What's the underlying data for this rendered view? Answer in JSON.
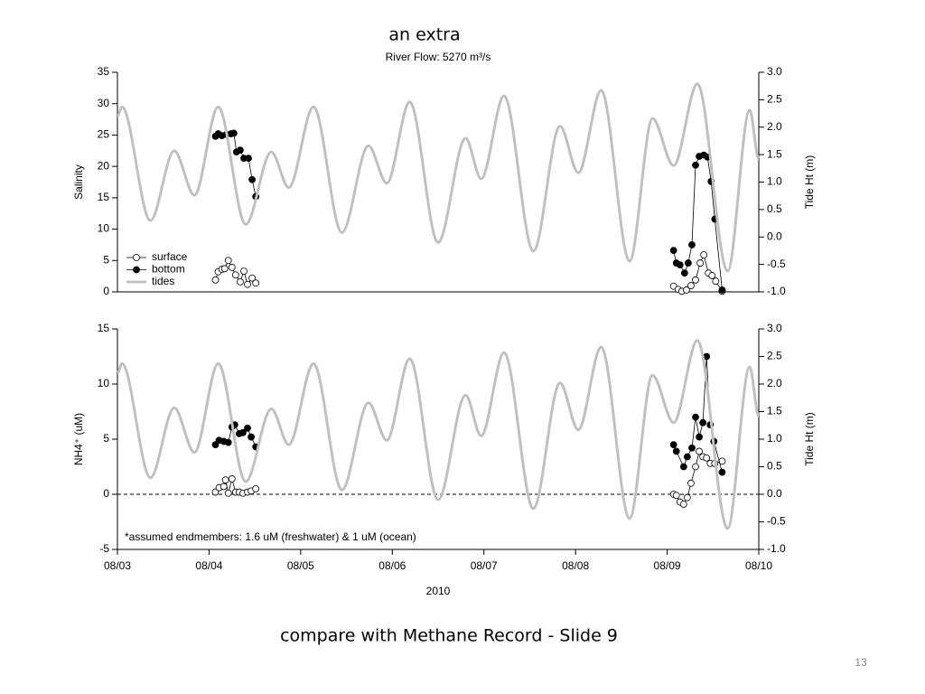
{
  "header": {
    "title": "an extra"
  },
  "chart_data": [
    {
      "type": "line",
      "title": "River Flow: 5270 m³/s",
      "ylabel": "Salinity",
      "y2label": "Tide Ht (m)",
      "xlim": [
        3,
        10
      ],
      "ylim": [
        0,
        35
      ],
      "yticks": [
        0,
        5,
        10,
        15,
        20,
        25,
        30,
        35
      ],
      "y2lim": [
        -1,
        3
      ],
      "y2ticks": [
        {
          "value": -1,
          "label": "-1.0"
        },
        -0.5,
        {
          "value": 0,
          "label": "0.0"
        },
        0.5,
        {
          "value": 1,
          "label": "1.0"
        },
        1.5,
        {
          "value": 2,
          "label": "2.0"
        },
        2.5,
        {
          "value": 3,
          "label": "3.0"
        }
      ],
      "legend": "lower left",
      "series": [
        {
          "name": "surface",
          "color": "#ffffff",
          "marker": "circle",
          "x": [
            4.07,
            4.1,
            4.14,
            4.17,
            4.21,
            4.25,
            4.29,
            4.34,
            4.38,
            4.42,
            4.47,
            4.51,
            null,
            9.07,
            9.12,
            9.16,
            9.21,
            9.26,
            9.31,
            9.36,
            9.4,
            9.45,
            9.49,
            9.53,
            9.6
          ],
          "values": [
            1.9,
            3.2,
            3.6,
            3.7,
            5.0,
            3.9,
            2.7,
            1.6,
            3.3,
            1.2,
            2.2,
            1.4,
            null,
            0.9,
            0.4,
            0.1,
            0.3,
            1.0,
            1.9,
            4.6,
            5.9,
            3.0,
            2.6,
            1.7,
            0.1
          ]
        },
        {
          "name": "bottom",
          "color": "#000000",
          "marker": "circle",
          "x": [
            4.07,
            4.1,
            4.14,
            4.19,
            4.24,
            4.27,
            4.3,
            4.34,
            4.38,
            4.43,
            4.47,
            4.51,
            null,
            9.07,
            9.1,
            9.14,
            9.19,
            9.23,
            9.27,
            9.31,
            9.35,
            9.4,
            9.44,
            9.48,
            9.52,
            9.6
          ],
          "values": [
            24.8,
            25.2,
            24.9,
            25.1,
            25.2,
            25.3,
            22.3,
            22.6,
            21.3,
            21.3,
            17.9,
            15.2,
            null,
            6.6,
            4.6,
            4.3,
            3.0,
            4.6,
            7.5,
            20.2,
            21.6,
            21.8,
            21.5,
            17.6,
            11.6,
            0.3
          ]
        },
        {
          "name": "tides",
          "color": "#c0c0c0",
          "axis": "y2",
          "x": [
            3.0,
            3.05,
            3.36,
            3.62,
            3.84,
            4.1,
            4.4,
            4.68,
            4.87,
            5.14,
            5.45,
            5.74,
            5.94,
            6.19,
            6.5,
            6.8,
            6.97,
            7.22,
            7.54,
            7.83,
            8.03,
            8.28,
            8.59,
            8.84,
            9.07,
            9.33,
            9.66,
            9.9,
            10.0
          ],
          "values": [
            2.2,
            2.37,
            0.3,
            1.57,
            0.76,
            2.37,
            0.23,
            1.55,
            0.9,
            2.37,
            0.08,
            1.66,
            0.98,
            2.46,
            -0.1,
            1.8,
            1.06,
            2.57,
            -0.26,
            2.02,
            1.17,
            2.67,
            -0.44,
            2.16,
            1.3,
            2.79,
            -0.62,
            2.31,
            1.42
          ]
        }
      ]
    },
    {
      "type": "line",
      "ylabel": "NH4⁺ (uM)",
      "y2label": "Tide Ht (m)",
      "xlabel": "2010",
      "annotation": "*assumed endmembers: 1.6 uM (freshwater) & 1 uM (ocean)",
      "hline": 0,
      "xlim": [
        3,
        10
      ],
      "xticks": [
        {
          "value": 3,
          "label": "08/03"
        },
        {
          "value": 4,
          "label": "08/04"
        },
        {
          "value": 5,
          "label": "08/05"
        },
        {
          "value": 6,
          "label": "08/06"
        },
        {
          "value": 7,
          "label": "08/07"
        },
        {
          "value": 8,
          "label": "08/08"
        },
        {
          "value": 9,
          "label": "08/09"
        },
        {
          "value": 10,
          "label": "08/10"
        }
      ],
      "ylim": [
        -5,
        15
      ],
      "yticks": [
        -5,
        0,
        5,
        10,
        15
      ],
      "y2lim": [
        -1,
        3
      ],
      "y2ticks": [
        {
          "value": -1,
          "label": "-1.0"
        },
        -0.5,
        {
          "value": 0,
          "label": "0.0"
        },
        0.5,
        {
          "value": 1,
          "label": "1.0"
        },
        1.5,
        {
          "value": 2,
          "label": "2.0"
        },
        2.5,
        {
          "value": 3,
          "label": "3.0"
        }
      ],
      "series": [
        {
          "name": "surface",
          "color": "#ffffff",
          "marker": "circle",
          "x": [
            4.07,
            4.11,
            4.16,
            4.18,
            4.21,
            4.25,
            4.29,
            4.33,
            4.37,
            4.42,
            4.46,
            4.51,
            null,
            9.07,
            9.1,
            9.14,
            9.18,
            9.22,
            9.26,
            9.31,
            9.35,
            9.39,
            9.43,
            9.47,
            9.52,
            9.6
          ],
          "values": [
            0.2,
            0.6,
            0.7,
            1.3,
            0.1,
            1.4,
            0.2,
            0.2,
            0.1,
            0.2,
            0.3,
            0.5,
            null,
            0,
            -0.1,
            -0.7,
            -0.9,
            -0.3,
            1.0,
            2.5,
            3.9,
            3.4,
            3.3,
            2.8,
            2.8,
            3.0
          ]
        },
        {
          "name": "bottom",
          "color": "#000000",
          "marker": "circle",
          "x": [
            4.07,
            4.11,
            4.16,
            4.21,
            4.25,
            4.28,
            4.33,
            4.37,
            4.42,
            4.46,
            4.51,
            null,
            9.07,
            9.1,
            9.18,
            9.22,
            9.27,
            9.31,
            9.35,
            9.39,
            9.43,
            9.47,
            9.51,
            9.6
          ],
          "values": [
            4.5,
            4.9,
            4.8,
            4.7,
            6.1,
            6.3,
            5.5,
            5.6,
            6.0,
            5.2,
            4.3,
            null,
            4.5,
            3.9,
            2.5,
            3.4,
            4.2,
            7.0,
            5.2,
            6.5,
            12.5,
            6.3,
            4.8,
            2.0
          ]
        },
        {
          "name": "tides",
          "color": "#c0c0c0",
          "axis": "y2",
          "x": [
            3.0,
            3.05,
            3.36,
            3.62,
            3.84,
            4.1,
            4.4,
            4.68,
            4.87,
            5.14,
            5.45,
            5.74,
            5.94,
            6.19,
            6.5,
            6.8,
            6.97,
            7.22,
            7.54,
            7.83,
            8.03,
            8.28,
            8.59,
            8.84,
            9.07,
            9.33,
            9.66,
            9.9,
            10.0
          ],
          "values": [
            2.2,
            2.37,
            0.3,
            1.57,
            0.76,
            2.37,
            0.23,
            1.55,
            0.9,
            2.37,
            0.08,
            1.66,
            0.98,
            2.46,
            -0.1,
            1.8,
            1.06,
            2.57,
            -0.26,
            2.02,
            1.17,
            2.67,
            -0.44,
            2.16,
            1.3,
            2.79,
            -0.62,
            2.31,
            1.42
          ]
        }
      ]
    }
  ],
  "footer": {
    "caption": "compare with Methane Record - Slide 9",
    "page_number": "13"
  }
}
